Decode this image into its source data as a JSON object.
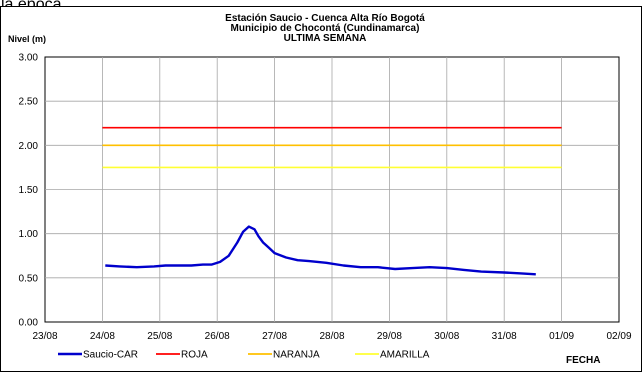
{
  "top_text": "la época.",
  "chart_data": {
    "type": "line",
    "title_lines": [
      "Estación Saucio - Cuenca Alta Río Bogotá",
      "Municipio de Chocontá (Cundinamarca)",
      "ULTIMA SEMANA"
    ],
    "ylabel": "Nivel (m)",
    "xlabel": "FECHA",
    "ylim": [
      0,
      3
    ],
    "y_ticks": [
      "0.00",
      "0.50",
      "1.00",
      "1.50",
      "2.00",
      "2.50",
      "3.00"
    ],
    "x_ticks": [
      "23/08",
      "24/08",
      "25/08",
      "26/08",
      "27/08",
      "28/08",
      "29/08",
      "30/08",
      "31/08",
      "01/09",
      "02/09"
    ],
    "grid": true,
    "legend_position": "bottom",
    "series": [
      {
        "name": "Saucio-CAR",
        "color": "#0000cc",
        "x": [
          1.05,
          1.3,
          1.6,
          1.9,
          2.1,
          2.3,
          2.55,
          2.75,
          2.9,
          3.05,
          3.2,
          3.35,
          3.45,
          3.55,
          3.65,
          3.72,
          3.8,
          3.9,
          4.0,
          4.2,
          4.4,
          4.6,
          4.9,
          5.2,
          5.5,
          5.8,
          6.1,
          6.4,
          6.7,
          7.0,
          7.3,
          7.6,
          8.0,
          8.3,
          8.55
        ],
        "y": [
          0.64,
          0.63,
          0.62,
          0.63,
          0.64,
          0.64,
          0.64,
          0.65,
          0.65,
          0.68,
          0.75,
          0.9,
          1.02,
          1.08,
          1.05,
          0.97,
          0.9,
          0.84,
          0.78,
          0.73,
          0.7,
          0.69,
          0.67,
          0.64,
          0.62,
          0.62,
          0.6,
          0.61,
          0.62,
          0.61,
          0.59,
          0.57,
          0.56,
          0.55,
          0.54
        ]
      },
      {
        "name": "ROJA",
        "color": "#ff0000",
        "x": [
          1.0,
          9.0
        ],
        "y": [
          2.2,
          2.2
        ]
      },
      {
        "name": "NARANJA",
        "color": "#ffc000",
        "x": [
          1.0,
          9.0
        ],
        "y": [
          2.0,
          2.0
        ]
      },
      {
        "name": "AMARILLA",
        "color": "#ffff33",
        "x": [
          1.0,
          9.0
        ],
        "y": [
          1.75,
          1.75
        ]
      }
    ]
  }
}
